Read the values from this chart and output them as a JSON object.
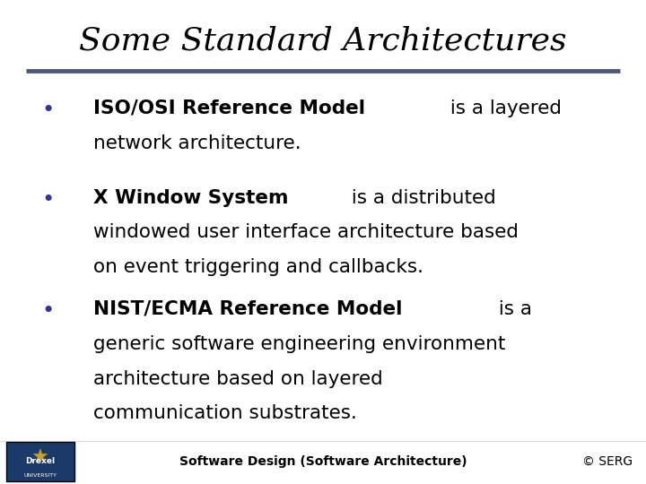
{
  "title": "Some Standard Architectures",
  "title_fontstyle": "italic",
  "title_fontsize": 26,
  "title_color": "#000000",
  "separator_color": "#4a5a7a",
  "bg_color": "#ffffff",
  "bullet_color": "#000000",
  "text_fontsize": 15.5,
  "footer_text": "Software Design (Software Architecture)",
  "footer_right": "© SERG",
  "footer_fontsize": 10,
  "footer_color": "#000000",
  "bullet_items": [
    {
      "bold_part": "ISO/OSI Reference Model",
      "normal_part": " is a layered",
      "extra_lines": [
        "network architecture."
      ]
    },
    {
      "bold_part": "X Window System",
      "normal_part": " is a distributed",
      "extra_lines": [
        "windowed user interface architecture based",
        "on event triggering and callbacks."
      ]
    },
    {
      "bold_part": "NIST/ECMA Reference Model",
      "normal_part": " is a",
      "extra_lines": [
        "generic software engineering environment",
        "architecture based on layered",
        "communication substrates."
      ]
    }
  ],
  "drexel_box_color": "#1a3a6a",
  "drexel_logo_color": "#c8a020"
}
